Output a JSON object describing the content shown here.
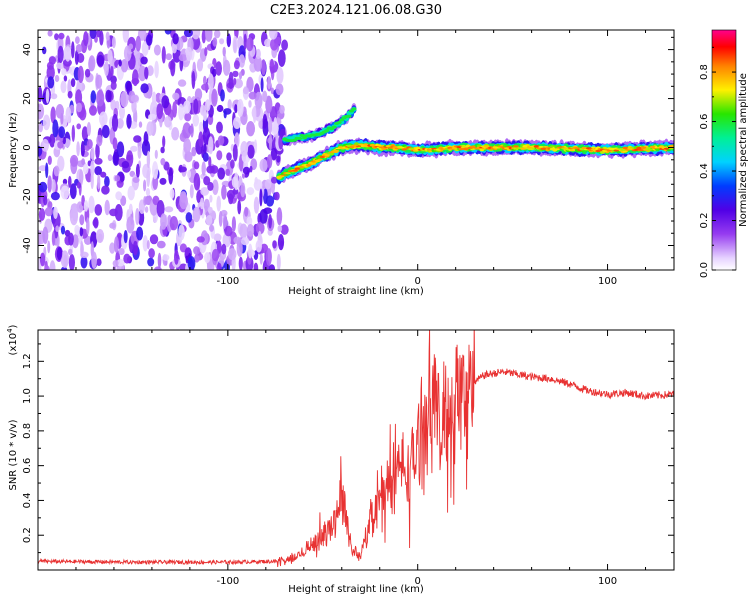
{
  "title": "C2E3.2024.121.06.08.G30",
  "chart_data": [
    {
      "type": "heatmap",
      "xlabel": "Height of straight line (km)",
      "ylabel": "Frequency (Hz)",
      "xlim": [
        -200,
        135
      ],
      "ylim": [
        -50,
        48
      ],
      "x_ticks": [
        -100,
        0,
        100
      ],
      "y_ticks": [
        -40,
        -20,
        0,
        20,
        40
      ],
      "colorbar": {
        "label": "Normalized spectral amplitude",
        "range": [
          0,
          0.97
        ],
        "ticks": [
          0.0,
          0.2,
          0.4,
          0.6,
          0.8
        ],
        "colormap": "rainbow"
      },
      "regions": [
        {
          "description": "noise",
          "x_range": [
            -200,
            -70
          ],
          "y_range": [
            -50,
            48
          ],
          "amplitude": 0.2
        },
        {
          "description": "signal",
          "x_range": [
            -72,
            135
          ],
          "center_frequency": 0,
          "amplitude": 0.8
        }
      ],
      "signal_trace": [
        {
          "x": -73,
          "f": -12
        },
        {
          "x": -65,
          "f": -9
        },
        {
          "x": -55,
          "f": -6
        },
        {
          "x": -48,
          "f": -3
        },
        {
          "x": -40,
          "f": 0
        },
        {
          "x": -30,
          "f": 1
        },
        {
          "x": -20,
          "f": 0
        },
        {
          "x": -10,
          "f": 0
        },
        {
          "x": 0,
          "f": -1
        },
        {
          "x": 20,
          "f": 0
        },
        {
          "x": 60,
          "f": 0
        },
        {
          "x": 100,
          "f": -1
        },
        {
          "x": 135,
          "f": 0
        }
      ],
      "branch_trace": [
        {
          "x": -70,
          "f": 3
        },
        {
          "x": -55,
          "f": 5
        },
        {
          "x": -45,
          "f": 8
        },
        {
          "x": -38,
          "f": 12
        },
        {
          "x": -33,
          "f": 16
        }
      ]
    },
    {
      "type": "line",
      "xlabel": "Height of straight line (km)",
      "ylabel": "SNR (10 * v/v)",
      "ylabel_exponent": "(x10",
      "exponent_power": "4",
      "exponent_close": ")",
      "xlim": [
        -200,
        135
      ],
      "ylim": [
        0,
        13800
      ],
      "x_ticks": [
        -100,
        0,
        100
      ],
      "y_ticks": [
        0.2,
        0.4,
        0.6,
        0.8,
        1.0,
        1.2
      ],
      "y_tick_labels": [
        "0.2",
        "0.4",
        "0.6",
        "0.8",
        "1.0",
        "1.2"
      ],
      "line_color": "#e83232",
      "x": [
        -200,
        -150,
        -100,
        -75,
        -65,
        -58,
        -52,
        -45,
        -40,
        -37,
        -35,
        -30,
        -27,
        -24,
        -20,
        -15,
        -10,
        -5,
        0,
        5,
        8,
        12,
        15,
        20,
        25,
        30,
        35,
        40,
        45,
        50,
        60,
        70,
        80,
        90,
        100,
        110,
        120,
        135
      ],
      "values": [
        500,
        450,
        450,
        500,
        650,
        1300,
        1800,
        2500,
        4500,
        2500,
        1200,
        800,
        2000,
        3500,
        4000,
        5000,
        6000,
        5500,
        7000,
        9500,
        10500,
        7500,
        9000,
        9500,
        10000,
        10800,
        11200,
        11300,
        11400,
        11300,
        11100,
        11000,
        10700,
        10300,
        10100,
        10200,
        10000,
        10100
      ]
    }
  ]
}
